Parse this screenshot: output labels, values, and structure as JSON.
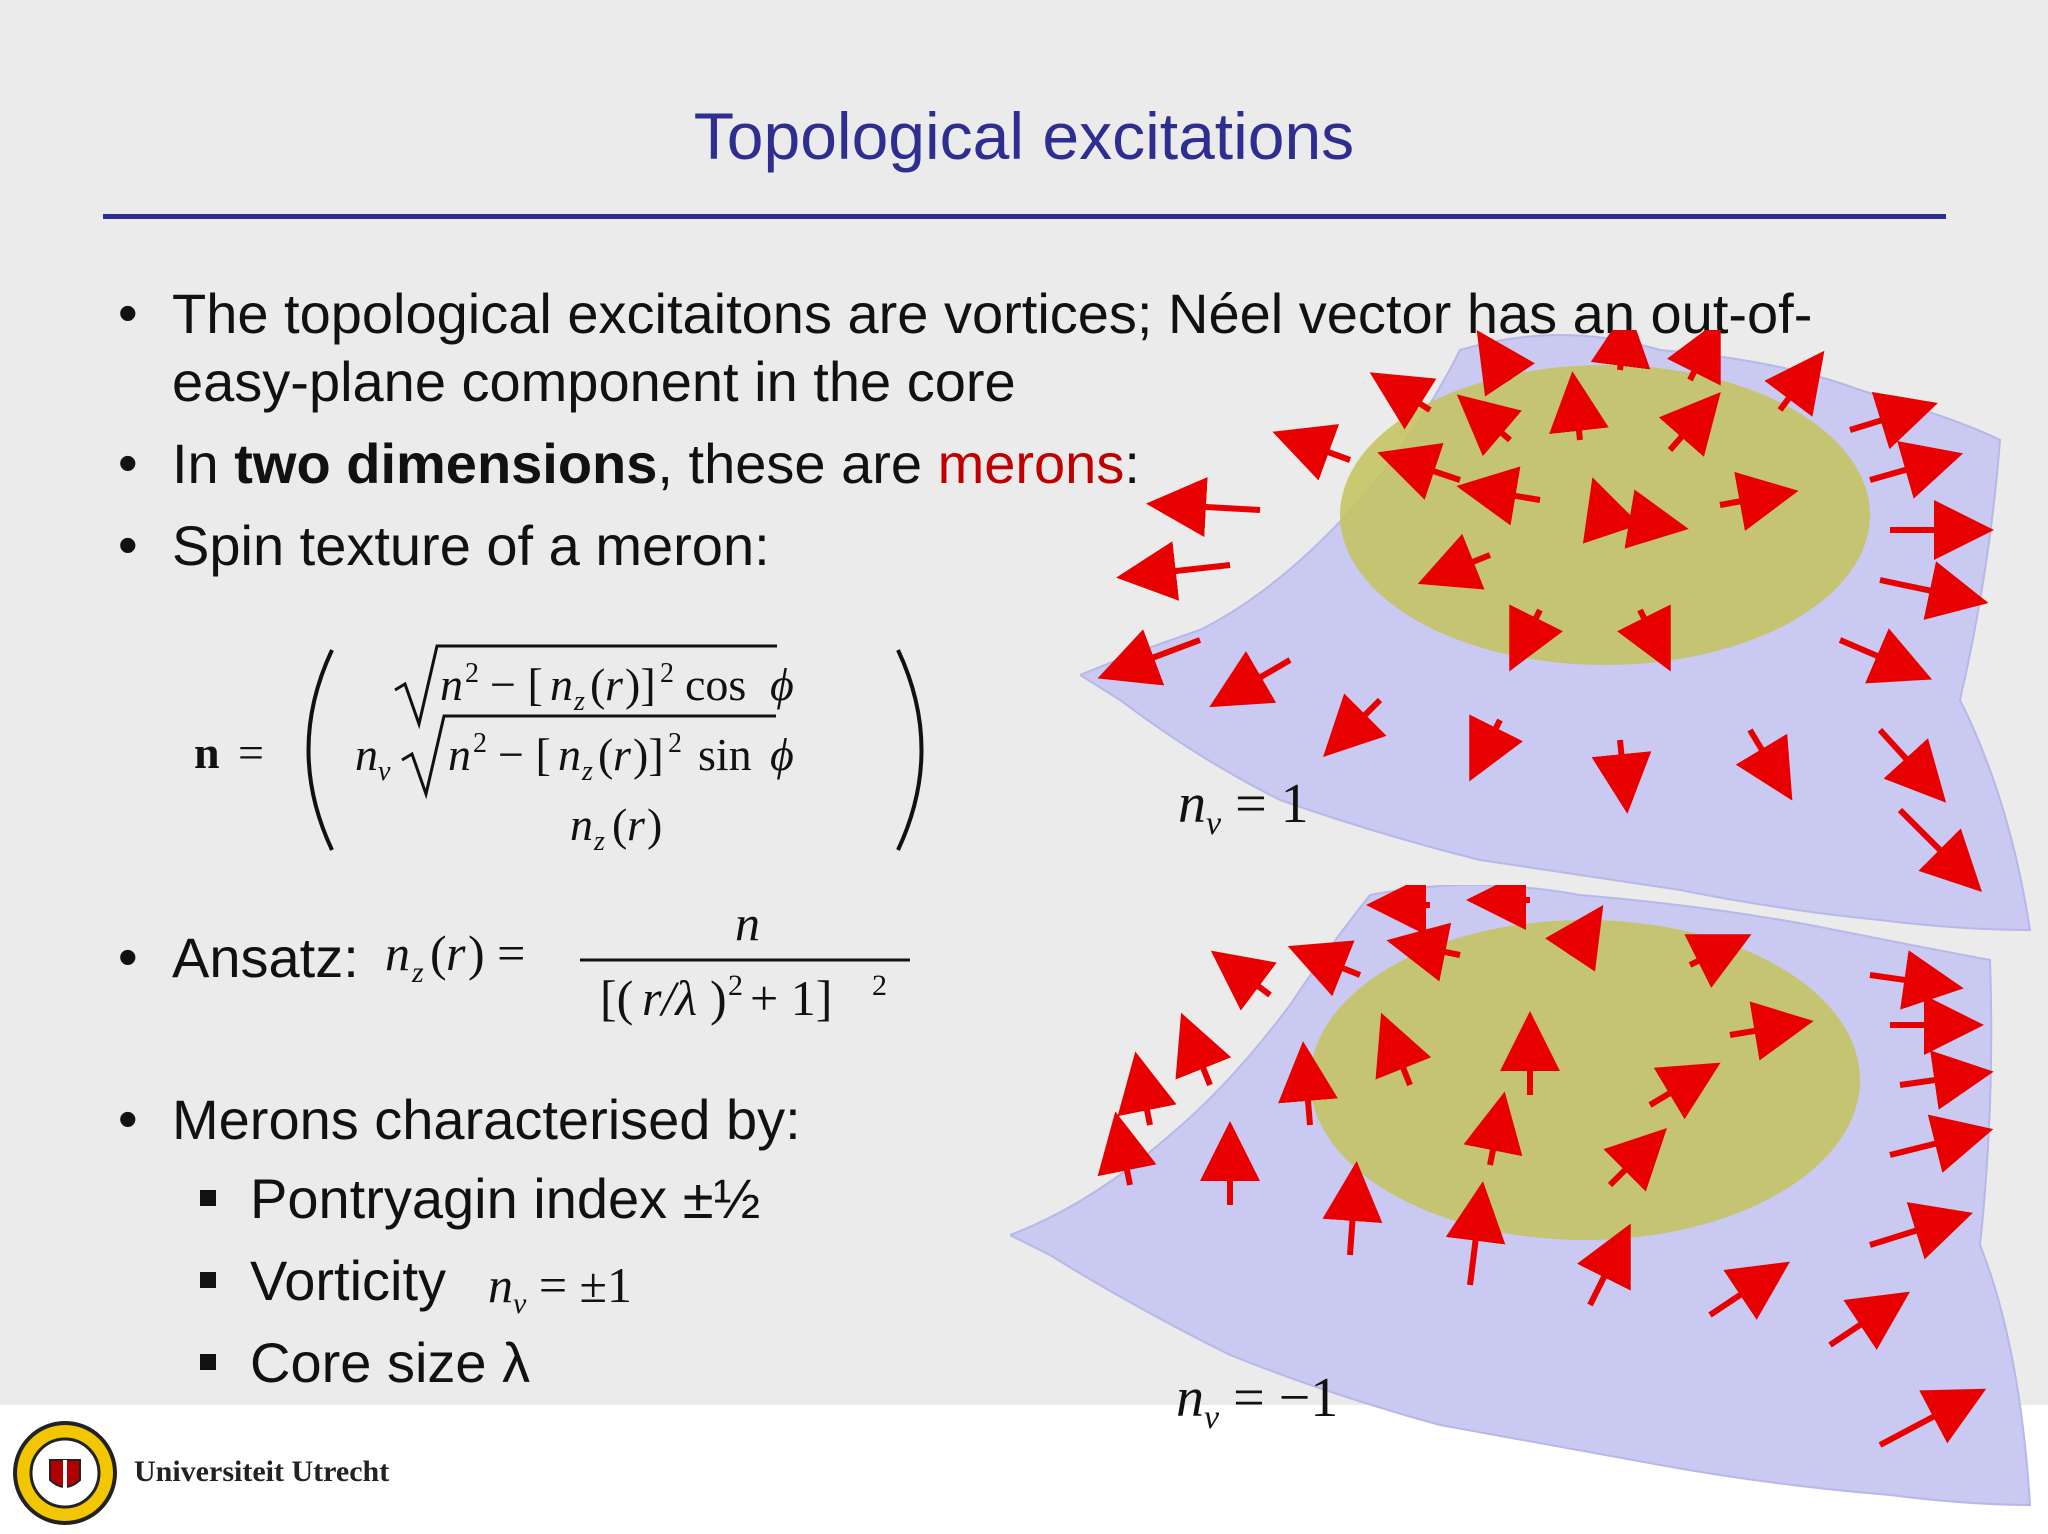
{
  "slide": {
    "title": "Topological excitations",
    "bullets": {
      "b1_line1": "The topological excitaitons are vortices; Néel vector has an out-of-",
      "b1_line2": "easy-plane component in the core",
      "b2_pre": "In ",
      "b2_bold": "two dimensions",
      "b2_mid": ", these are ",
      "b2_red": "merons",
      "b2_end": ":",
      "b3": "Spin texture of a meron:",
      "b4": "Ansatz:",
      "b5": "Merons characterised by:"
    },
    "sub_bullets": {
      "s1": "Pontryagin index ±½",
      "s2": "Vorticity",
      "s3": "Core size λ"
    },
    "figure_labels": {
      "top": "= 1",
      "bottom": "= −1"
    },
    "footer": {
      "university": "Universiteit Utrecht"
    },
    "colors": {
      "title": "#2e2e91",
      "accent_red": "#c00000",
      "surface": "#c9c9f2",
      "core": "#c3c35c"
    }
  }
}
